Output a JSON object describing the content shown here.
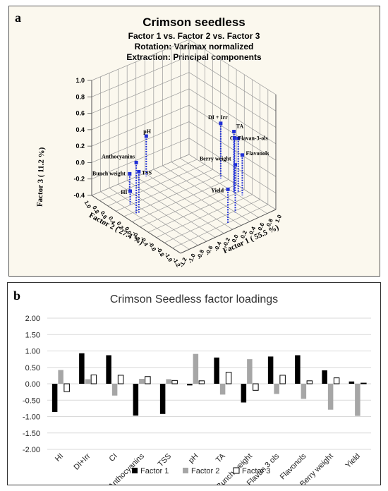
{
  "panel_a": {
    "letter": "a",
    "title": "Crimson seedless",
    "subtitle_lines": [
      "Factor 1 vs. Factor 2 vs. Factor 3",
      "Rotation: Varimax normalized",
      "Extraction: Principal components"
    ],
    "axis_labels": {
      "factor1": "Factor 1 ( 55.5 %)",
      "factor2": "Factor 2 ( 27.4 %)",
      "factor3": "Factor 3 ( 11.2 %)"
    },
    "z_ticks": [
      "1.0",
      "0.8",
      "0.6",
      "0.4",
      "0.2",
      "0.0",
      "-0.2",
      "-0.4"
    ],
    "f1_ticks": [
      "-1.2",
      "-1.0",
      "-0.8",
      "-0.6",
      "-0.4",
      "-0.2",
      "0.0",
      "0.2",
      "0.4",
      "0.6",
      "0.8",
      "1.0"
    ],
    "f2_ticks": [
      "1.0",
      "0.8",
      "0.6",
      "0.4",
      "0.2",
      "0.0",
      "-0.2",
      "-0.4",
      "-0.6",
      "-0.8",
      "-1.0",
      "-1.2"
    ],
    "point_labels": [
      "pH",
      "Anthocyanins",
      "Bunch weight",
      "HI",
      "TSS",
      "DI + Irr",
      "TA",
      "CI",
      "Flavan-3-ols",
      "Flavonols",
      "Berry weight",
      "Yield"
    ],
    "point_color": "#1f2fd6"
  },
  "panel_b": {
    "letter": "b"
  },
  "chart_data": [
    {
      "type": "scatter",
      "title": "Crimson seedless",
      "subtitle": [
        "Factor 1 vs. Factor 2 vs. Factor 3",
        "Rotation: Varimax normalized",
        "Extraction: Principal components"
      ],
      "xlabel": "Factor 1 ( 55.5 %)",
      "ylabel": "Factor 2 ( 27.4 %)",
      "zlabel": "Factor 3 ( 11.2 %)",
      "xlim": [
        -1.2,
        1.0
      ],
      "ylim": [
        -1.2,
        1.0
      ],
      "zlim": [
        -0.4,
        1.0
      ],
      "points": [
        {
          "label": "HI",
          "x": -0.86,
          "y": 0.42,
          "z": -0.24
        },
        {
          "label": "DI + Irr",
          "x": 0.93,
          "y": 0.14,
          "z": 0.27
        },
        {
          "label": "CI",
          "x": 0.87,
          "y": -0.36,
          "z": 0.26
        },
        {
          "label": "Anthocyanins",
          "x": -0.97,
          "y": 0.15,
          "z": 0.22
        },
        {
          "label": "TSS",
          "x": -0.92,
          "y": 0.14,
          "z": 0.1
        },
        {
          "label": "pH",
          "x": -0.05,
          "y": 0.91,
          "z": 0.09
        },
        {
          "label": "TA",
          "x": 0.8,
          "y": -0.33,
          "z": 0.35
        },
        {
          "label": "Bunch weight",
          "x": -0.57,
          "y": 0.75,
          "z": -0.2
        },
        {
          "label": "Flavan-3-ols",
          "x": 0.83,
          "y": -0.31,
          "z": 0.26
        },
        {
          "label": "Flavonols",
          "x": 0.87,
          "y": -0.46,
          "z": 0.09
        },
        {
          "label": "Berry weight",
          "x": 0.41,
          "y": -0.79,
          "z": 0.18
        },
        {
          "label": "Yield",
          "x": 0.07,
          "y": -0.98,
          "z": 0.02
        }
      ]
    },
    {
      "type": "bar",
      "title": "Crimson Seedless factor loadings",
      "categories": [
        "HI",
        "DI+Irr",
        "CI",
        "Anthocyanins",
        "TSS",
        "pH",
        "TA",
        "Bunch weight",
        "Flavan 3 ols",
        "Flavonols",
        "Berry weight",
        "Yield"
      ],
      "series": [
        {
          "name": "Factor 1",
          "color": "#000000",
          "values": [
            -0.86,
            0.93,
            0.87,
            -0.97,
            -0.92,
            -0.05,
            0.8,
            -0.57,
            0.83,
            0.87,
            0.41,
            0.07
          ]
        },
        {
          "name": "Factor 2",
          "color": "#a6a6a6",
          "values": [
            0.42,
            0.14,
            -0.36,
            0.15,
            0.14,
            0.91,
            -0.33,
            0.75,
            -0.31,
            -0.46,
            -0.79,
            -0.98
          ]
        },
        {
          "name": "Factor 3",
          "color": "#ffffff",
          "values": [
            -0.24,
            0.27,
            0.26,
            0.22,
            0.1,
            0.09,
            0.35,
            -0.2,
            0.26,
            0.09,
            0.18,
            0.02
          ]
        }
      ],
      "ylim": [
        -2.0,
        2.0
      ],
      "yticks": [
        "2.00",
        "1.50",
        "1.00",
        "0.50",
        "0.00",
        "-0.50",
        "-1.00",
        "-1.50",
        "-2.00"
      ],
      "grid": true,
      "legend_position": "bottom"
    }
  ]
}
